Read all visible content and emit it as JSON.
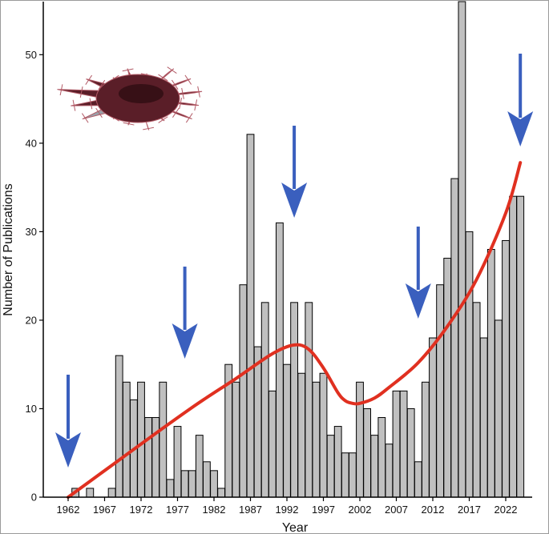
{
  "chart_data": {
    "type": "bar",
    "xlabel": "Year",
    "ylabel": "Number of Publications",
    "ylim": [
      0,
      56
    ],
    "yticks": [
      0,
      10,
      20,
      30,
      40,
      50
    ],
    "xticks": [
      1962,
      1967,
      1972,
      1977,
      1982,
      1987,
      1992,
      1997,
      2002,
      2007,
      2012,
      2017,
      2022
    ],
    "xtick_labels": [
      "1962",
      "1967",
      "1972",
      "1977",
      "1982",
      "1987",
      "1992",
      "1997",
      "2002",
      "2007",
      "2012",
      "2017",
      "2022"
    ],
    "ytick_labels": [
      "0",
      "10",
      "20",
      "30",
      "40",
      "50"
    ],
    "x": [
      1962,
      1963,
      1964,
      1965,
      1966,
      1967,
      1968,
      1969,
      1970,
      1971,
      1972,
      1973,
      1974,
      1975,
      1976,
      1977,
      1978,
      1979,
      1980,
      1981,
      1982,
      1983,
      1984,
      1985,
      1986,
      1987,
      1988,
      1989,
      1990,
      1991,
      1992,
      1993,
      1994,
      1995,
      1996,
      1997,
      1998,
      1999,
      2000,
      2001,
      2002,
      2003,
      2004,
      2005,
      2006,
      2007,
      2008,
      2009,
      2010,
      2011,
      2012,
      2013,
      2014,
      2015,
      2016,
      2017,
      2018,
      2019,
      2020,
      2021,
      2022,
      2023,
      2024
    ],
    "values": [
      0,
      1,
      0,
      1,
      0,
      0,
      1,
      16,
      13,
      11,
      13,
      9,
      9,
      13,
      2,
      8,
      3,
      3,
      7,
      4,
      3,
      1,
      15,
      13,
      24,
      41,
      17,
      22,
      12,
      31,
      15,
      22,
      14,
      22,
      13,
      14,
      7,
      8,
      5,
      5,
      13,
      10,
      7,
      9,
      6,
      12,
      12,
      10,
      4,
      13,
      18,
      24,
      27,
      36,
      56,
      30,
      22,
      18,
      28,
      20,
      29,
      34,
      34
    ],
    "bar_color": "#c0c0c0",
    "bar_edge_color": "#000000",
    "trend": {
      "color": "#e03020",
      "x": [
        1962,
        1965,
        1970,
        1975,
        1980,
        1985,
        1990,
        1993,
        1995,
        1997,
        1999,
        2000,
        2001,
        2002,
        2004,
        2006,
        2010,
        2014,
        2018,
        2022,
        2024
      ],
      "y": [
        0,
        1.8,
        4.8,
        7.8,
        10.7,
        13.4,
        16.2,
        17.2,
        16.7,
        14.6,
        11.8,
        10.9,
        10.6,
        10.6,
        11.2,
        12.4,
        15.2,
        19.3,
        24.6,
        32.1,
        37.8
      ]
    },
    "arrows": {
      "color": "#3a5fbe",
      "years": [
        1962,
        1978,
        1993,
        2010,
        2024
      ]
    }
  },
  "image": {
    "icon": "crown-of-thorns-starfish-icon",
    "body_color": "#5a1e28",
    "spine_color": "#b25a66",
    "underside_color": "#9aa0a8"
  }
}
